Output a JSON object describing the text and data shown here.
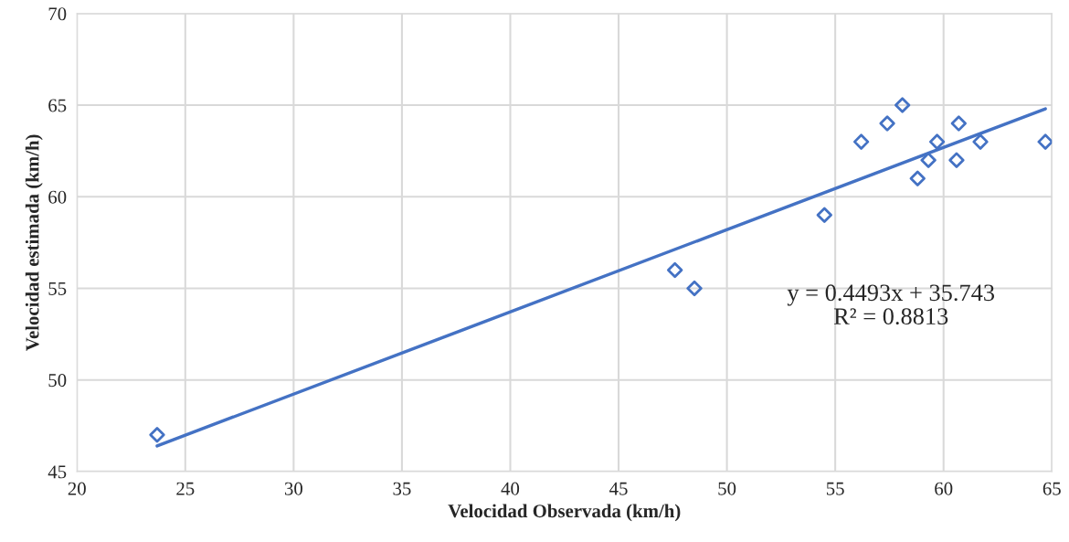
{
  "chart_data": {
    "type": "scatter",
    "xlabel": "Velocidad Observada (km/h)",
    "ylabel": "Velocidad estimada (km/h)",
    "series": [
      {
        "color": "#4472c4",
        "marker": "diamond",
        "x": [
          23.7,
          47.6,
          48.5,
          54.5,
          56.2,
          57.4,
          58.1,
          58.8,
          59.3,
          59.7,
          60.6,
          60.7,
          61.7,
          64.7
        ],
        "values": [
          47,
          56,
          55,
          59,
          63,
          64,
          65,
          61,
          62,
          63,
          62,
          64,
          63,
          63
        ]
      },
      {
        "type": "line",
        "color": "#4472c4",
        "marker": "none",
        "line_style": "solid",
        "x": [
          23.7,
          64.7
        ],
        "values": [
          46.4,
          64.8
        ]
      }
    ],
    "annotations": [
      "y = 0.4493x + 35.743\nR² = 0.8813"
    ],
    "xlim": [
      20,
      65
    ],
    "xticks": [
      20,
      25,
      30,
      35,
      40,
      45,
      50,
      55,
      60,
      65
    ],
    "ylim": [
      45,
      70
    ],
    "yticks": [
      45,
      50,
      55,
      60,
      65,
      70
    ],
    "grid": true
  }
}
